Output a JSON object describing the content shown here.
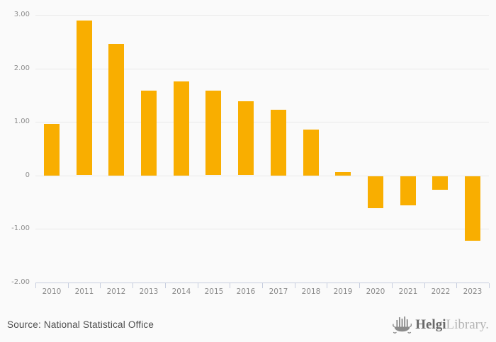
{
  "chart_data": {
    "type": "bar",
    "title": "",
    "xlabel": "",
    "ylabel": "",
    "categories": [
      "2010",
      "2011",
      "2012",
      "2013",
      "2014",
      "2015",
      "2016",
      "2017",
      "2018",
      "2019",
      "2020",
      "2021",
      "2022",
      "2023"
    ],
    "values": [
      0.96,
      2.89,
      2.46,
      1.59,
      1.76,
      1.58,
      1.38,
      1.23,
      0.86,
      0.06,
      -0.6,
      -0.54,
      -0.25,
      -1.21
    ],
    "ylim": [
      -2,
      3
    ],
    "yticks": [
      {
        "value": 3,
        "label": "3.00"
      },
      {
        "value": 2,
        "label": "2.00"
      },
      {
        "value": 1,
        "label": "1.00"
      },
      {
        "value": 0,
        "label": "0"
      },
      {
        "value": -1,
        "label": "-1.00"
      },
      {
        "value": -2,
        "label": "-2.00"
      }
    ],
    "grid": true,
    "legend": false,
    "bar_color": "#f9ae00",
    "gridline_color": "#e9e9e9",
    "axis_color": "#c6cdde",
    "background_color": "#fafafa"
  },
  "footer": {
    "source_label": "Source: National Statistical Office",
    "logo": {
      "icon": "ship-icon",
      "name_bold": "Helgi",
      "name_light": "Library."
    }
  }
}
